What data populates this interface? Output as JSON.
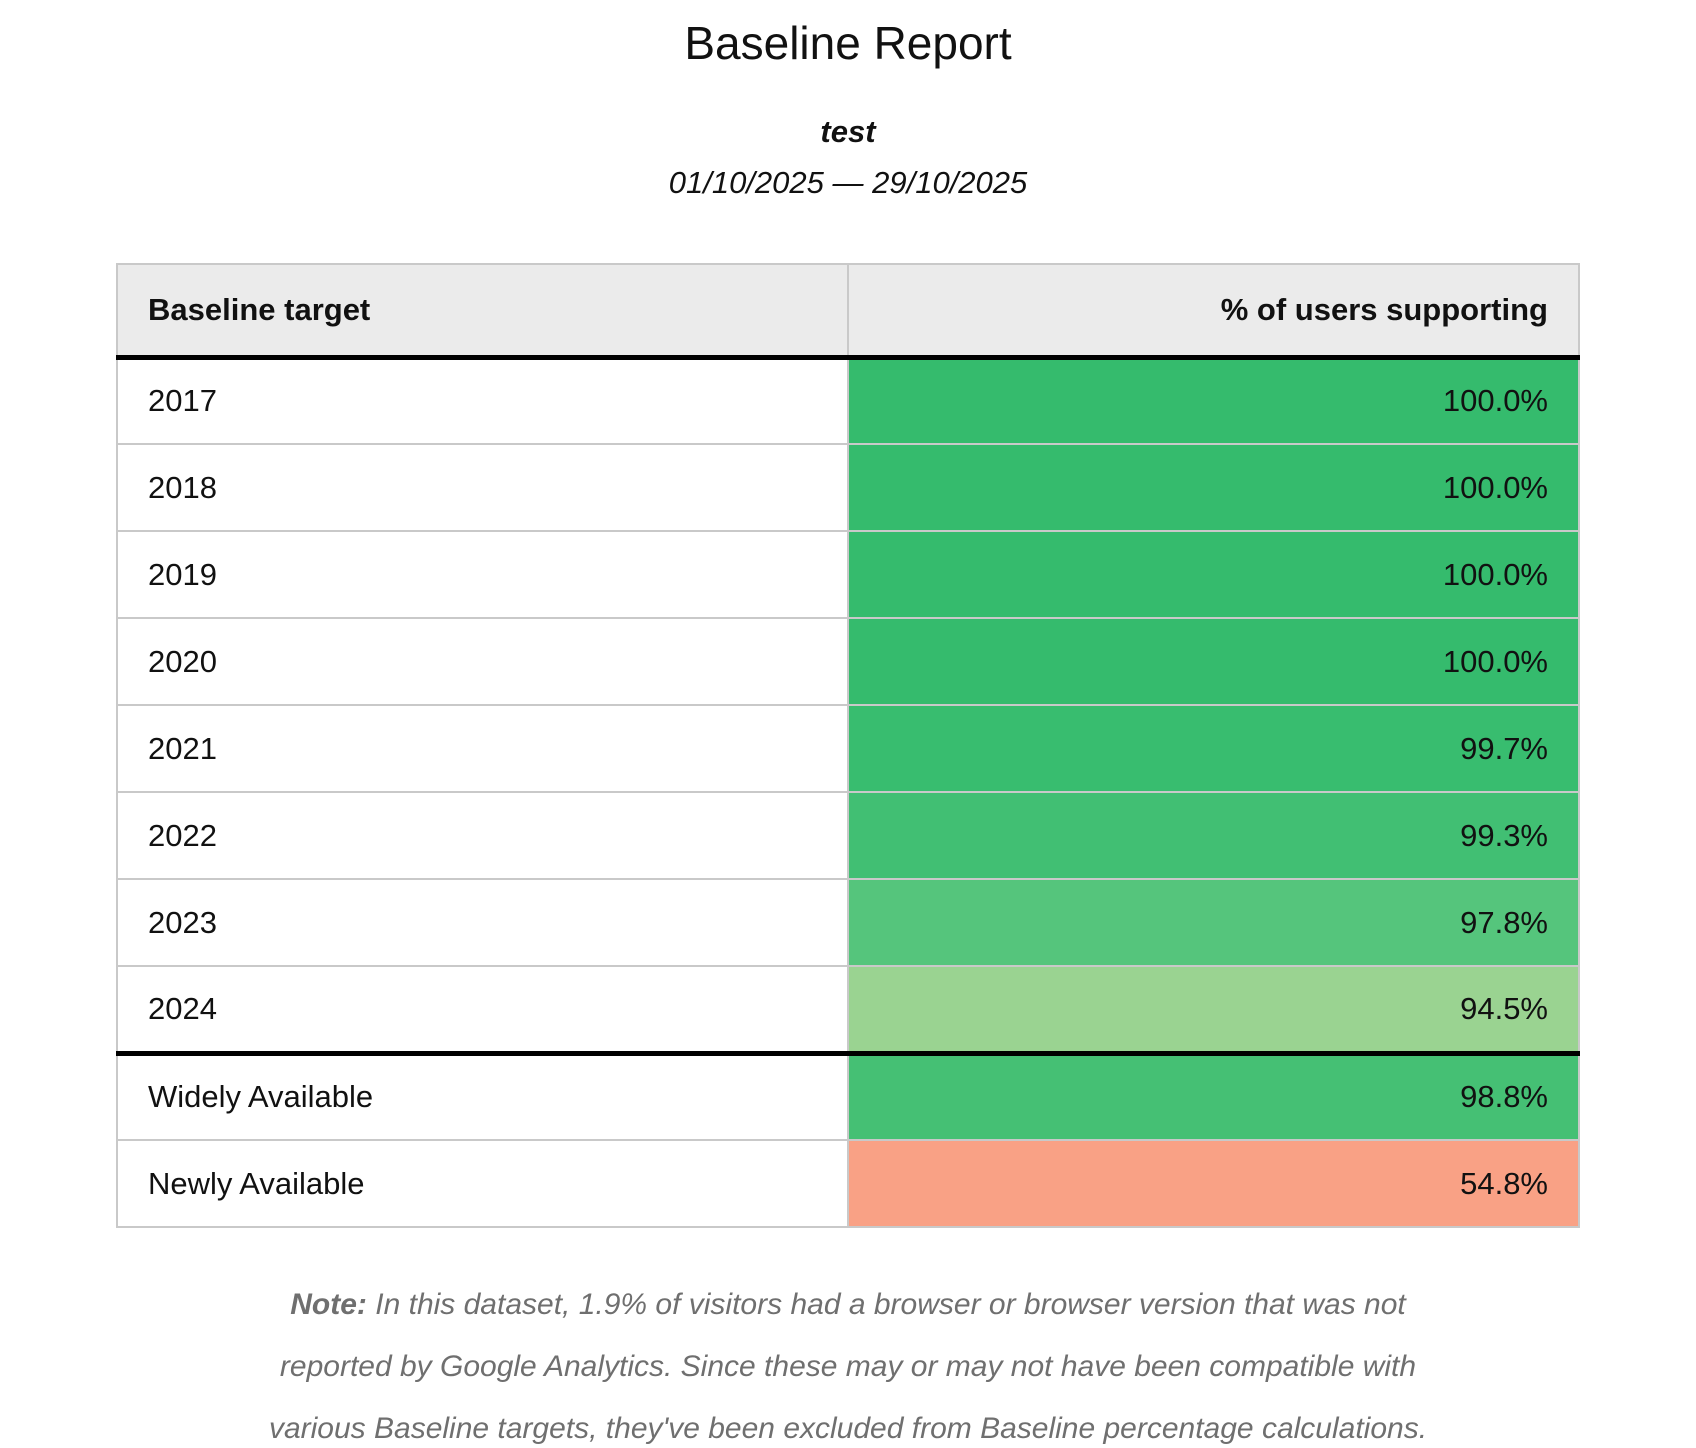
{
  "report": {
    "title": "Baseline Report",
    "subtitle": "test",
    "date_range": "01/10/2025 — 29/10/2025"
  },
  "table": {
    "columns": [
      {
        "label": "Baseline target"
      },
      {
        "label": "% of users supporting"
      }
    ],
    "rows": [
      {
        "target": "2017",
        "value": "100.0%",
        "color": "#35bb6d",
        "section": "year-target"
      },
      {
        "target": "2018",
        "value": "100.0%",
        "color": "#35bb6d",
        "section": "year-target"
      },
      {
        "target": "2019",
        "value": "100.0%",
        "color": "#35bb6d",
        "section": "year-target"
      },
      {
        "target": "2020",
        "value": "100.0%",
        "color": "#35bb6d",
        "section": "year-target"
      },
      {
        "target": "2021",
        "value": "99.7%",
        "color": "#38bd6f",
        "section": "year-target"
      },
      {
        "target": "2022",
        "value": "99.3%",
        "color": "#41bf73",
        "section": "year-target"
      },
      {
        "target": "2023",
        "value": "97.8%",
        "color": "#55c57c",
        "section": "year-target"
      },
      {
        "target": "2024",
        "value": "94.5%",
        "color": "#9ad391",
        "section": "year-target"
      },
      {
        "target": "Widely Available",
        "value": "98.8%",
        "color": "#45c074",
        "section": "availability",
        "separator_before": true
      },
      {
        "target": "Newly Available",
        "value": "54.8%",
        "color": "#f9a185",
        "section": "availability"
      }
    ]
  },
  "note": {
    "label": "Note:",
    "text": "In this dataset, 1.9% of visitors had a browser or browser version that was not reported by Google Analytics. Since these may or may not have been compatible with various Baseline targets, they've been excluded from Baseline percentage calculations."
  },
  "colors": {
    "header_background": "#ebebeb",
    "cell_border": "#c9c9c9",
    "section_separator": "#000000",
    "note_text": "#6f6f6f",
    "full_support_green": "#35bb6d",
    "low_support_salmon": "#f9a185"
  },
  "chart_data": {
    "type": "table",
    "title": "Baseline Report",
    "subtitle": "test",
    "date_range": "01/10/2025 — 29/10/2025",
    "columns": [
      "Baseline target",
      "% of users supporting"
    ],
    "categories": [
      "2017",
      "2018",
      "2019",
      "2020",
      "2021",
      "2022",
      "2023",
      "2024",
      "Widely Available",
      "Newly Available"
    ],
    "values": [
      100.0,
      100.0,
      100.0,
      100.0,
      99.7,
      99.3,
      97.8,
      94.5,
      98.8,
      54.8
    ]
  }
}
